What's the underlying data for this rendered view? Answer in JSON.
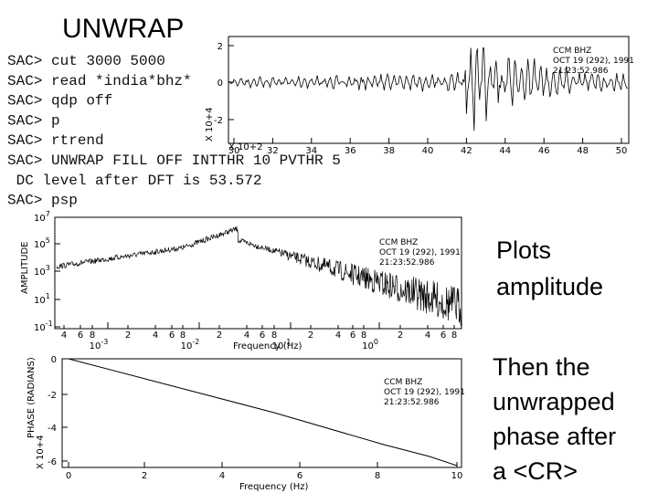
{
  "title": "UNWRAP",
  "terminal": {
    "lines": [
      "SAC> cut 3000 5000",
      "SAC> read *india*bhz*",
      "SAC> qdp off",
      "SAC> p",
      "SAC> rtrend",
      "SAC> UNWRAP FILL OFF INTTHR 10 PVTHR 5",
      " DC level after DFT is 53.572",
      "SAC> psp"
    ]
  },
  "seismogram": {
    "station": [
      "CCM  BHZ",
      "OCT 19 (292), 1991",
      "21:23:52.986"
    ],
    "yticks": [
      "2",
      "0",
      "-2"
    ],
    "y_multiplier": "X 10+4",
    "xticks": [
      "30",
      "32",
      "34",
      "36",
      "38",
      "40",
      "42",
      "44",
      "46",
      "48",
      "50"
    ],
    "x_multiplier": "X 10+2"
  },
  "amplitude_plot": {
    "station": [
      "CCM  BHZ",
      "OCT 19 (292), 1991",
      "21:23:52.986"
    ],
    "ylabel": "AMPLITUDE",
    "yticks": [
      {
        "base": "10",
        "exp": "7"
      },
      {
        "base": "10",
        "exp": "5"
      },
      {
        "base": "10",
        "exp": "3"
      },
      {
        "base": "10",
        "exp": "1"
      },
      {
        "base": "10",
        "exp": "-1"
      }
    ],
    "xticks_minor": [
      "4",
      "6",
      "8",
      "2",
      "4",
      "6",
      "8",
      "2",
      "4",
      "6",
      "8",
      "2",
      "4",
      "6",
      "8",
      "2",
      "4",
      "6",
      "8"
    ],
    "xticks_decade": [
      {
        "base": "10",
        "exp": "-3"
      },
      {
        "base": "10",
        "exp": "-2"
      },
      {
        "base": "10",
        "exp": "-1"
      },
      {
        "base": "10",
        "exp": "0"
      }
    ],
    "xlabel": "Frequency (Hz)"
  },
  "phase_plot": {
    "station": [
      "CCM  BHZ",
      "OCT 19 (292), 1991",
      "21:23:52.986"
    ],
    "ylabel": "PHASE (RADIANS)",
    "y_multiplier": "X 10+4",
    "yticks": [
      "0",
      "-2",
      "-4",
      "-6"
    ],
    "xticks": [
      "0",
      "2",
      "4",
      "6",
      "8",
      "10"
    ],
    "xlabel": "Frequency (Hz)"
  },
  "notes": {
    "amplitude": [
      "Plots",
      "amplitude"
    ],
    "phase": [
      "Then the",
      "unwrapped",
      "phase after",
      "a <CR>"
    ]
  }
}
